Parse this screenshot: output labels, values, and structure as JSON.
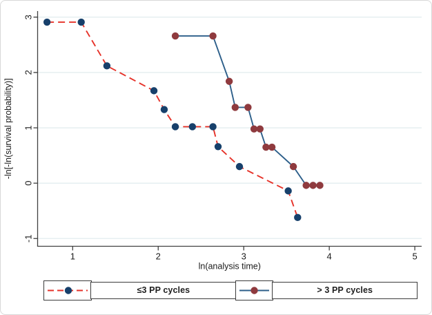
{
  "figure": {
    "background_color": "#ffffff",
    "border_color": "#d8d8d8",
    "axis_color": "#404040",
    "grid_color": "#e3edef",
    "text_color": "#1a1a1a",
    "legend_border_color": "#3a3a3a"
  },
  "chart_data": {
    "type": "line",
    "title": "",
    "xlabel": "ln(analysis time)",
    "ylabel": "-ln[-ln(survival probability)]",
    "xlim": [
      0.59,
      5.08
    ],
    "ylim": [
      -1.14,
      3.11
    ],
    "x_ticks": [
      1,
      2,
      3,
      4,
      5
    ],
    "y_ticks": [
      -1,
      0,
      1,
      2,
      3
    ],
    "grid": "horizontal-only",
    "legend_position": "bottom",
    "series": [
      {
        "name": "≤3 PP cycles",
        "line_style": "dashed",
        "line_color": "#e63229",
        "marker": "circle",
        "marker_color": "#17406b",
        "x": [
          0.7,
          1.1,
          1.4,
          1.95,
          2.07,
          2.2,
          2.4,
          2.64,
          2.7,
          2.95,
          3.52,
          3.63
        ],
        "y": [
          2.91,
          2.91,
          2.12,
          1.67,
          1.33,
          1.02,
          1.02,
          1.02,
          0.66,
          0.3,
          -0.14,
          -0.62
        ]
      },
      {
        "name": "> 3 PP cycles",
        "line_style": "solid",
        "line_color": "#2d5f8a",
        "marker": "circle",
        "marker_color": "#8f3a3e",
        "x": [
          2.2,
          2.64,
          2.83,
          2.9,
          3.05,
          3.12,
          3.19,
          3.26,
          3.33,
          3.58,
          3.73,
          3.81,
          3.89
        ],
        "y": [
          2.66,
          2.66,
          1.84,
          1.37,
          1.37,
          0.98,
          0.98,
          0.65,
          0.65,
          0.3,
          -0.04,
          -0.04,
          -0.04
        ]
      }
    ]
  },
  "legend": {
    "items": [
      {
        "label": "≤3 PP cycles"
      },
      {
        "label": "> 3 PP cycles"
      }
    ]
  }
}
